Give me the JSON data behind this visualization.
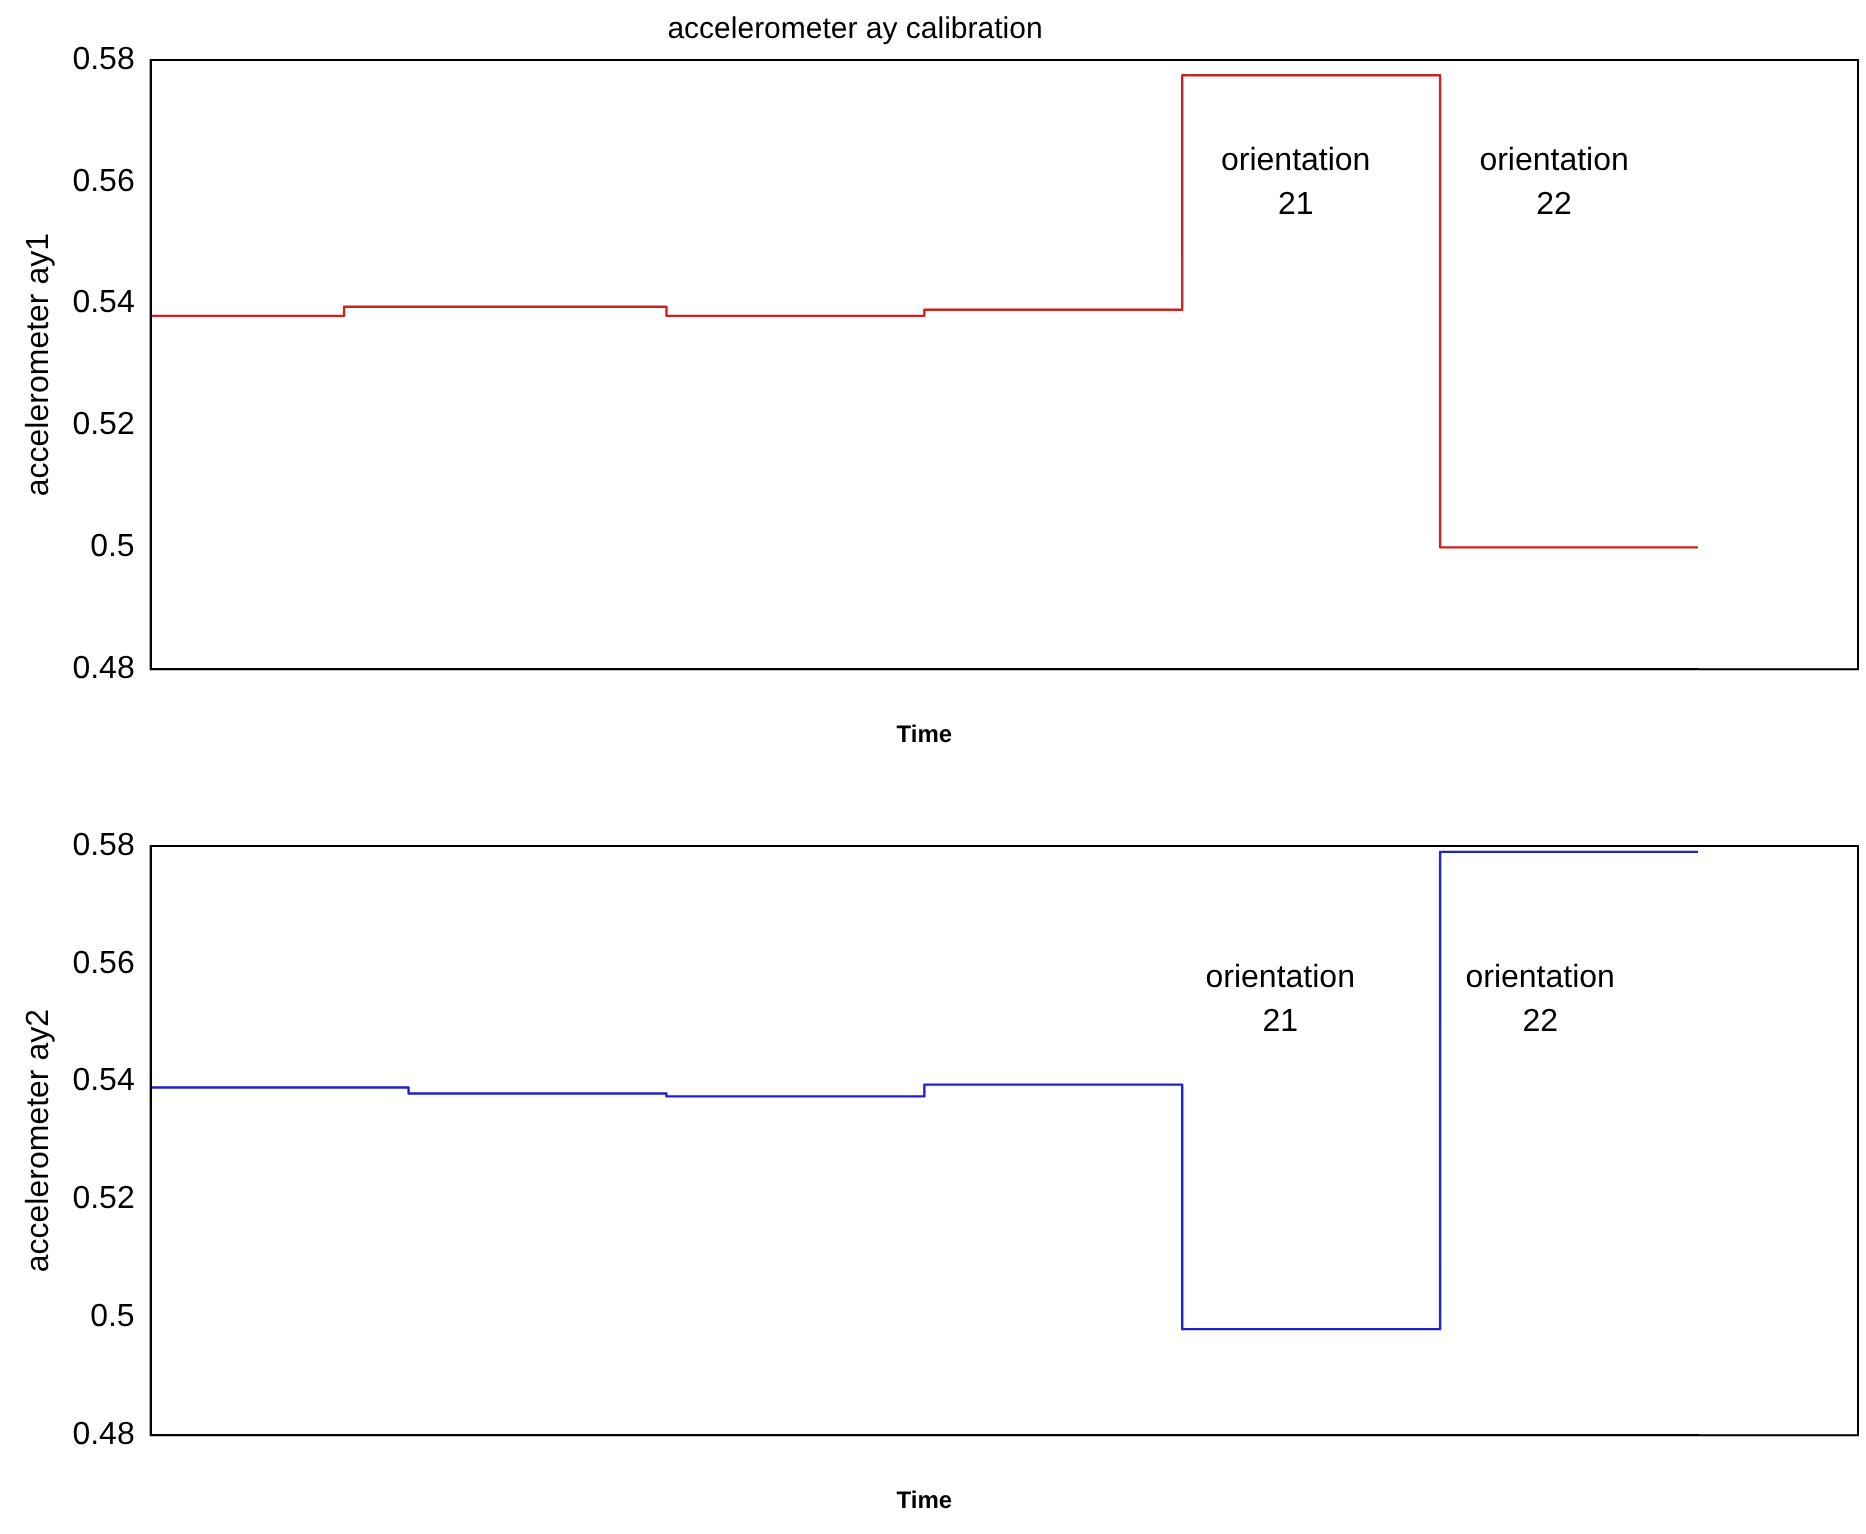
{
  "chart_data": [
    {
      "type": "step",
      "title": "accelerometer ay calibration",
      "xlabel": "Time",
      "ylabel": "accelerometer ay1",
      "categories": [
        null,
        null,
        null,
        null,
        null,
        null,
        null,
        null,
        null,
        null,
        null,
        null,
        null,
        null,
        null,
        null,
        null,
        null,
        null,
        null,
        null,
        null,
        null,
        null,
        null,
        null,
        null,
        null,
        null,
        null,
        null,
        null,
        null,
        null,
        null,
        null,
        null,
        null,
        null,
        null,
        null,
        null,
        null,
        null,
        null,
        null,
        null,
        null,
        null,
        null,
        null,
        null,
        null,
        null,
        null,
        null,
        null,
        null,
        null,
        null,
        null,
        null,
        null,
        null,
        null,
        null,
        null,
        null,
        null,
        null,
        null,
        null,
        null
      ],
      "series": [
        {
          "color": "#cc2222",
          "values": [
            0.538,
            0.538,
            0.538,
            0.538,
            0.538,
            0.538,
            0.538,
            0.538,
            0.538,
            0.538,
            0.5395,
            0.5395,
            0.5395,
            0.5395,
            0.5395,
            0.5395,
            0.5395,
            0.5395,
            0.5395,
            0.5395,
            0.5395,
            0.5395,
            0.5395,
            0.5395,
            0.5395,
            0.538,
            0.538,
            0.538,
            0.538,
            0.538,
            0.538,
            0.538,
            0.538,
            0.538,
            0.538,
            0.538,
            0.538,
            0.539,
            0.539,
            0.539,
            0.539,
            0.539,
            0.539,
            0.539,
            0.539,
            0.539,
            0.539,
            0.539,
            0.539,
            0.5775,
            0.5775,
            0.5775,
            0.5775,
            0.5775,
            0.5775,
            0.5775,
            0.5775,
            0.5775,
            0.5775,
            0.5775,
            0.5775,
            0.5,
            0.5,
            0.5,
            0.5,
            0.5,
            0.5,
            0.5,
            0.5,
            0.5,
            0.5,
            0.5,
            0.5
          ]
        }
      ],
      "ylim": [
        0.48,
        0.58
      ],
      "yticks": [
        0.48,
        0.5,
        0.52,
        0.54,
        0.56,
        0.58
      ],
      "tick_labels": "y",
      "grid": false,
      "legend": false,
      "annotations": [
        "orientation\n21",
        "orientation\n22"
      ]
    },
    {
      "type": "step",
      "xlabel": "Time",
      "ylabel": "accelerometer ay2",
      "categories": [
        null,
        null,
        null,
        null,
        null,
        null,
        null,
        null,
        null,
        null,
        null,
        null,
        null,
        null,
        null,
        null,
        null,
        null,
        null,
        null,
        null,
        null,
        null,
        null,
        null,
        null,
        null,
        null,
        null,
        null,
        null,
        null,
        null,
        null,
        null,
        null,
        null,
        null,
        null,
        null,
        null,
        null,
        null,
        null,
        null,
        null,
        null,
        null,
        null,
        null,
        null,
        null,
        null,
        null,
        null,
        null,
        null,
        null,
        null,
        null,
        null,
        null,
        null,
        null,
        null,
        null,
        null,
        null,
        null,
        null,
        null,
        null,
        null
      ],
      "series": [
        {
          "color": "#2222cc",
          "values": [
            0.539,
            0.539,
            0.539,
            0.539,
            0.539,
            0.539,
            0.539,
            0.539,
            0.539,
            0.539,
            0.539,
            0.539,
            0.539,
            0.538,
            0.538,
            0.538,
            0.538,
            0.538,
            0.538,
            0.538,
            0.538,
            0.538,
            0.538,
            0.538,
            0.538,
            0.5375,
            0.5375,
            0.5375,
            0.5375,
            0.5375,
            0.5375,
            0.5375,
            0.5375,
            0.5375,
            0.5375,
            0.5375,
            0.5375,
            0.5395,
            0.5395,
            0.5395,
            0.5395,
            0.5395,
            0.5395,
            0.5395,
            0.5395,
            0.5395,
            0.5395,
            0.5395,
            0.5395,
            0.498,
            0.498,
            0.498,
            0.498,
            0.498,
            0.498,
            0.498,
            0.498,
            0.498,
            0.498,
            0.498,
            0.498,
            0.579,
            0.579,
            0.579,
            0.579,
            0.579,
            0.579,
            0.579,
            0.579,
            0.579,
            0.579,
            0.579,
            0.579
          ]
        }
      ],
      "ylim": [
        0.48,
        0.58
      ],
      "yticks": [
        0.48,
        0.5,
        0.52,
        0.54,
        0.56,
        0.58
      ],
      "tick_labels": "y",
      "grid": false,
      "legend": false,
      "annotations": [
        "orientation\n21",
        "orientation\n22"
      ]
    }
  ]
}
